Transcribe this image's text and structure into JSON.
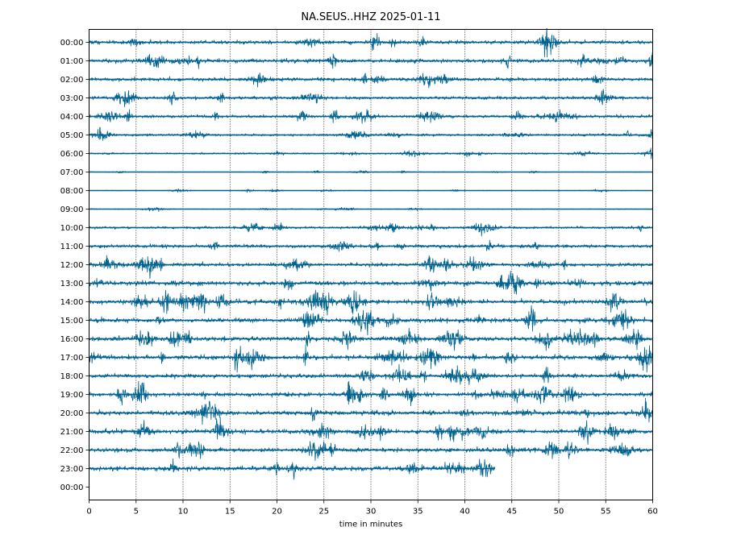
{
  "chart_data": {
    "type": "line",
    "title": "NA.SEUS..HHZ 2025-01-11",
    "xlabel": "time in minutes",
    "ylabel": "",
    "xlim": [
      0,
      60
    ],
    "x_ticks": [
      0,
      5,
      10,
      15,
      20,
      25,
      30,
      35,
      40,
      45,
      50,
      55,
      60
    ],
    "grid": "vertical dotted",
    "trace_color": "#00628f",
    "rows": [
      {
        "label": "00:00",
        "end_minute": 60,
        "amplitude": 0.3
      },
      {
        "label": "01:00",
        "end_minute": 60,
        "amplitude": 0.3
      },
      {
        "label": "02:00",
        "end_minute": 60,
        "amplitude": 0.28
      },
      {
        "label": "03:00",
        "end_minute": 60,
        "amplitude": 0.26
      },
      {
        "label": "04:00",
        "end_minute": 60,
        "amplitude": 0.24
      },
      {
        "label": "05:00",
        "end_minute": 60,
        "amplitude": 0.2
      },
      {
        "label": "06:00",
        "end_minute": 60,
        "amplitude": 0.14
      },
      {
        "label": "07:00",
        "end_minute": 60,
        "amplitude": 0.06
      },
      {
        "label": "08:00",
        "end_minute": 60,
        "amplitude": 0.05
      },
      {
        "label": "09:00",
        "end_minute": 60,
        "amplitude": 0.07
      },
      {
        "label": "10:00",
        "end_minute": 60,
        "amplitude": 0.2
      },
      {
        "label": "11:00",
        "end_minute": 60,
        "amplitude": 0.28
      },
      {
        "label": "12:00",
        "end_minute": 60,
        "amplitude": 0.3
      },
      {
        "label": "13:00",
        "end_minute": 60,
        "amplitude": 0.38
      },
      {
        "label": "14:00",
        "end_minute": 60,
        "amplitude": 0.38
      },
      {
        "label": "15:00",
        "end_minute": 60,
        "amplitude": 0.38
      },
      {
        "label": "16:00",
        "end_minute": 60,
        "amplitude": 0.36
      },
      {
        "label": "17:00",
        "end_minute": 60,
        "amplitude": 0.36
      },
      {
        "label": "18:00",
        "end_minute": 60,
        "amplitude": 0.34
      },
      {
        "label": "19:00",
        "end_minute": 60,
        "amplitude": 0.32
      },
      {
        "label": "20:00",
        "end_minute": 60,
        "amplitude": 0.36
      },
      {
        "label": "21:00",
        "end_minute": 60,
        "amplitude": 0.36
      },
      {
        "label": "22:00",
        "end_minute": 60,
        "amplitude": 0.34
      },
      {
        "label": "23:00",
        "end_minute": 43.2,
        "amplitude": 0.38
      },
      {
        "label": "00:00",
        "end_minute": 0,
        "amplitude": 0
      }
    ]
  }
}
